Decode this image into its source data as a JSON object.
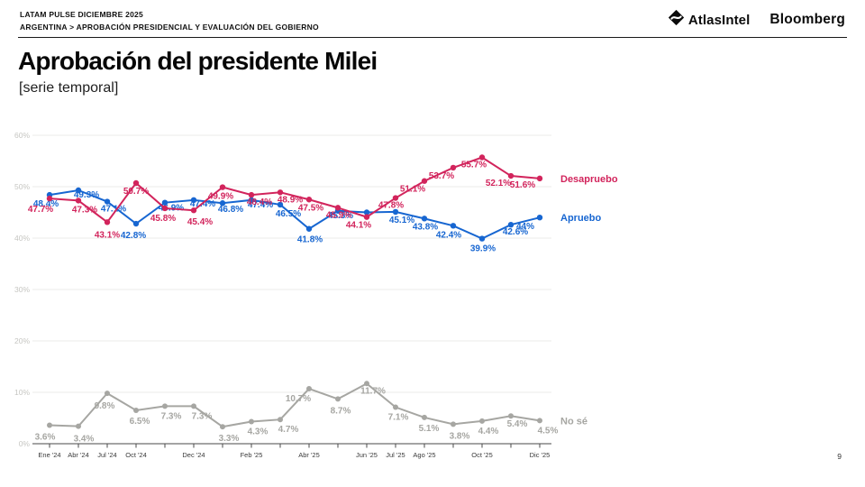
{
  "header": {
    "kicker_line1": "LATAM PULSE DICIEMBRE 2025",
    "kicker_line2": "ARGENTINA > APROBACIÓN PRESIDENCIAL Y EVALUACIÓN DEL GOBIERNO",
    "logo_atlasintel": "AtlasIntel",
    "logo_bloomberg": "Bloomberg"
  },
  "title": "Aprobación del presidente Milei",
  "subtitle": "[serie temporal]",
  "page_number": "9",
  "chart_data": {
    "type": "line",
    "title": "Aprobación del presidente Milei [serie temporal]",
    "ylim": [
      0,
      60
    ],
    "y_tick_labels": [
      "0%",
      "10%",
      "20%",
      "30%",
      "40%",
      "50%",
      "60%"
    ],
    "y_tick_values": [
      0,
      10,
      20,
      30,
      40,
      50,
      60
    ],
    "grid": true,
    "legend_position": "right-of-last-point",
    "x_points": 18,
    "x_tick_labels": [
      "Ene '24",
      "Abr '24",
      "Jul '24",
      "Oct '24",
      "Dec '24",
      "Feb '25",
      "Abr '25",
      "Jun '25",
      "Jul '25",
      "Ago '25",
      "Oct '25",
      "Dic '25"
    ],
    "x_tick_positions": [
      0,
      1,
      2,
      3,
      5,
      7,
      9,
      11,
      12,
      13,
      15,
      17
    ],
    "series": [
      {
        "name": "Desapruebo",
        "color": "#d2245c",
        "values": [
          47.7,
          47.3,
          43.1,
          50.7,
          45.8,
          45.4,
          49.9,
          48.4,
          48.9,
          47.5,
          45.9,
          44.1,
          47.8,
          51.1,
          53.7,
          55.7,
          52.1,
          51.6
        ]
      },
      {
        "name": "Apruebo",
        "color": "#1766d1",
        "values": [
          48.4,
          49.3,
          47.1,
          42.8,
          46.9,
          47.4,
          46.8,
          47.4,
          46.5,
          41.8,
          45.3,
          45.0,
          45.1,
          43.8,
          42.4,
          39.9,
          42.6,
          44
        ]
      },
      {
        "name": "No sé",
        "color": "#a6a6a2",
        "values": [
          3.6,
          3.4,
          9.8,
          6.5,
          7.3,
          7.3,
          3.3,
          4.3,
          4.7,
          10.7,
          8.7,
          11.7,
          7.1,
          5.1,
          3.8,
          4.4,
          5.4,
          4.5
        ]
      }
    ],
    "unlabeled_points": {
      "Apruebo": [
        11
      ]
    },
    "colors": {
      "grid": "#ebebe9",
      "axis": "#4a4a4a",
      "y_tick_text": "#c6c6c2",
      "x_tick_text": "#3a3a3a"
    }
  }
}
